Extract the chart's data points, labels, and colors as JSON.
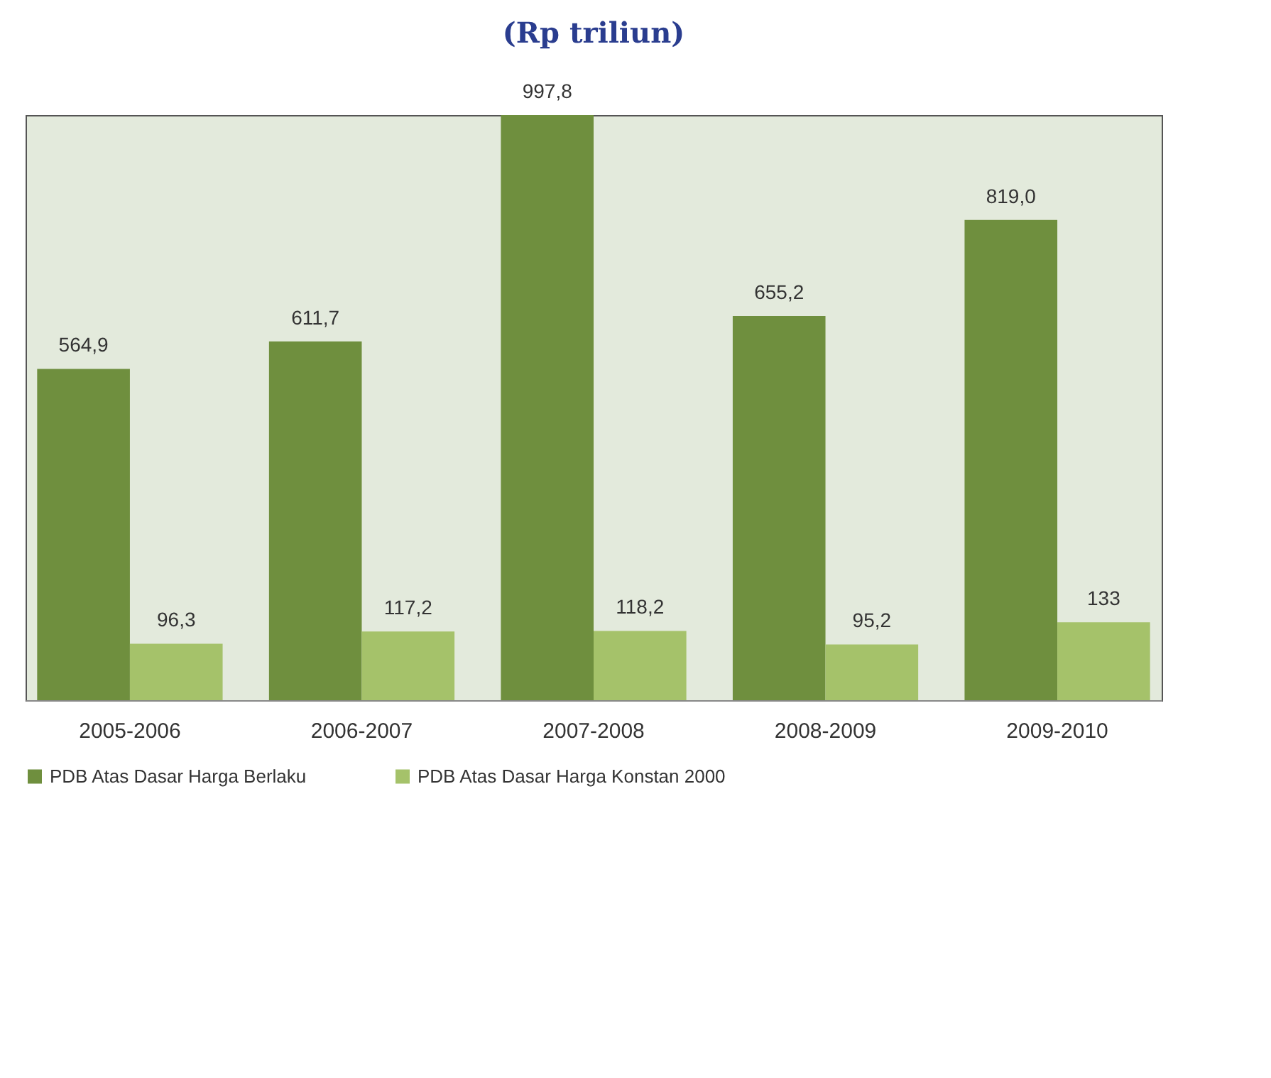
{
  "chart_data": {
    "type": "bar",
    "title": "(Rp triliun)",
    "categories": [
      "2005-2006",
      "2006-2007",
      "2007-2008",
      "2008-2009",
      "2009-2010"
    ],
    "series": [
      {
        "name": "PDB Atas Dasar Harga Berlaku",
        "color": "#6f8f3e",
        "values": [
          564.9,
          611.7,
          997.8,
          655.2,
          819.0
        ],
        "value_labels": [
          "564,9",
          "611,7",
          "997,8",
          "655,2",
          "819,0"
        ]
      },
      {
        "name": "PDB Atas Dasar Harga Konstan 2000",
        "color": "#a5c26a",
        "values": [
          96.3,
          117.2,
          118.2,
          95.2,
          133
        ],
        "value_labels": [
          "96,3",
          "117,2",
          "118,2",
          "95,2",
          "133"
        ]
      }
    ],
    "legend": "bottom"
  }
}
